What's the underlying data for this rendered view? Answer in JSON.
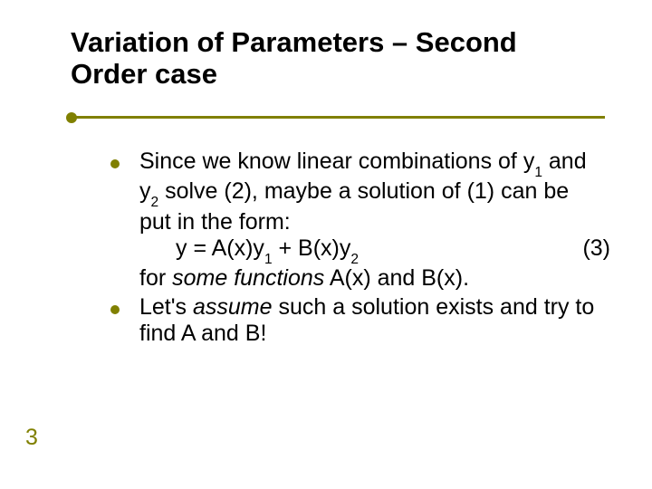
{
  "title": {
    "line1": "Variation of Parameters – Second",
    "line2": "Order case",
    "fontsize": 31,
    "color": "#000000"
  },
  "accent_color": "#808000",
  "body": {
    "fontsize": 25,
    "color": "#000000",
    "bullets": [
      {
        "line1_a": "Since we know linear combinations of y",
        "line1_sub1": "1",
        "line1_b": " and",
        "line2_a": "y",
        "line2_sub1": "2",
        "line2_b": " solve (2), maybe a solution of (1) can be",
        "line3": "put in the form:",
        "eq_left_a": "y = A(x)y",
        "eq_sub1": "1",
        "eq_mid": " + B(x)y",
        "eq_sub2": "2",
        "eq_right": "(3)",
        "line5_a": "for ",
        "line5_italic": "some functions",
        "line5_b": " A(x) and B(x)."
      },
      {
        "line1_a": "Let's ",
        "line1_italic": "assume",
        "line1_b": " such a solution exists and try to",
        "line2": "find A and B!"
      }
    ]
  },
  "page_number": {
    "value": "3",
    "fontsize": 25,
    "color": "#808000"
  }
}
